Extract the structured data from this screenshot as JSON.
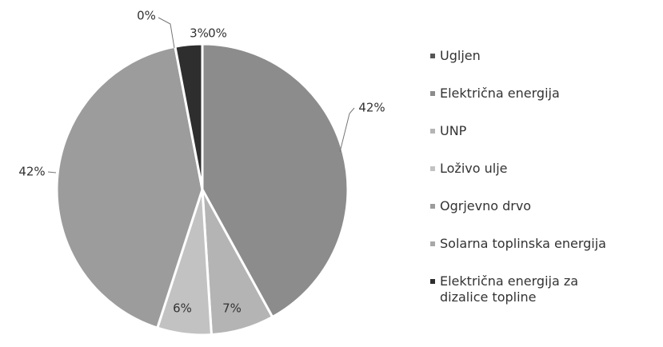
{
  "chart_data": {
    "type": "pie",
    "categories": [
      "Ugljen",
      "Električna energija",
      "UNP",
      "Loživo ulje",
      "Ogrjevno drvo",
      "Solarna toplinska energija",
      "Električna energija za dizalice topline"
    ],
    "values": [
      0,
      42,
      7,
      6,
      42,
      0,
      3
    ],
    "value_labels": [
      "0%",
      "42%",
      "7%",
      "6%",
      "42%",
      "0%",
      "3%"
    ],
    "colors": [
      "#555555",
      "#8c8c8c",
      "#b4b4b4",
      "#c2c2c2",
      "#9c9c9c",
      "#a8a8a8",
      "#2e2e2e"
    ],
    "legend": "right"
  }
}
